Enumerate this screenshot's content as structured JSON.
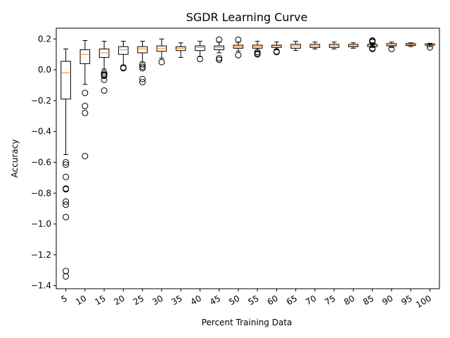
{
  "chart_data": {
    "type": "boxplot",
    "title": "SGDR Learning Curve",
    "xlabel": "Percent Training Data",
    "ylabel": "Accuracy",
    "ylim": [
      -1.42,
      0.27
    ],
    "yticks": [
      0.2,
      0.0,
      -0.2,
      -0.4,
      -0.6,
      -0.8,
      -1.0,
      -1.2,
      -1.4
    ],
    "ytick_labels": [
      "0.2",
      "0.0",
      "−0.2",
      "−0.4",
      "−0.6",
      "−0.8",
      "−1.0",
      "−1.2",
      "−1.4"
    ],
    "categories": [
      "5",
      "10",
      "15",
      "20",
      "25",
      "30",
      "35",
      "40",
      "45",
      "50",
      "55",
      "60",
      "65",
      "70",
      "75",
      "80",
      "85",
      "90",
      "95",
      "100"
    ],
    "boxes": [
      {
        "whislo": -0.55,
        "q1": -0.19,
        "med": -0.02,
        "q3": 0.055,
        "whishi": 0.135,
        "fliers": [
          -0.6,
          -0.615,
          -0.695,
          -0.77,
          -0.775,
          -0.855,
          -0.875,
          -0.955,
          -1.305,
          -1.34
        ]
      },
      {
        "whislo": -0.095,
        "q1": 0.04,
        "med": 0.1,
        "q3": 0.13,
        "whishi": 0.19,
        "fliers": [
          -0.15,
          -0.235,
          -0.28,
          -0.56
        ]
      },
      {
        "whislo": 0.005,
        "q1": 0.08,
        "med": 0.11,
        "q3": 0.135,
        "whishi": 0.185,
        "fliers": [
          -0.02,
          -0.03,
          -0.035,
          -0.04,
          -0.065,
          -0.135
        ]
      },
      {
        "whislo": 0.03,
        "q1": 0.1,
        "med": 0.13,
        "q3": 0.15,
        "whishi": 0.185,
        "fliers": [
          0.015,
          0.01
        ]
      },
      {
        "whislo": 0.05,
        "q1": 0.11,
        "med": 0.135,
        "q3": 0.15,
        "whishi": 0.185,
        "fliers": [
          0.035,
          0.02,
          0.01,
          -0.06,
          -0.08
        ]
      },
      {
        "whislo": 0.075,
        "q1": 0.12,
        "med": 0.14,
        "q3": 0.155,
        "whishi": 0.2,
        "fliers": [
          0.05
        ]
      },
      {
        "whislo": 0.08,
        "q1": 0.125,
        "med": 0.14,
        "q3": 0.15,
        "whishi": 0.175,
        "fliers": []
      },
      {
        "whislo": 0.085,
        "q1": 0.125,
        "med": 0.145,
        "q3": 0.155,
        "whishi": 0.185,
        "fliers": [
          0.07
        ]
      },
      {
        "whislo": 0.11,
        "q1": 0.13,
        "med": 0.145,
        "q3": 0.155,
        "whishi": 0.18,
        "fliers": [
          0.195,
          0.075,
          0.065
        ]
      },
      {
        "whislo": 0.12,
        "q1": 0.14,
        "med": 0.15,
        "q3": 0.16,
        "whishi": 0.18,
        "fliers": [
          0.195,
          0.095
        ]
      },
      {
        "whislo": 0.12,
        "q1": 0.14,
        "med": 0.15,
        "q3": 0.16,
        "whishi": 0.185,
        "fliers": [
          0.115,
          0.105,
          0.1
        ]
      },
      {
        "whislo": 0.13,
        "q1": 0.145,
        "med": 0.155,
        "q3": 0.16,
        "whishi": 0.18,
        "fliers": [
          0.12,
          0.115
        ]
      },
      {
        "whislo": 0.125,
        "q1": 0.14,
        "med": 0.155,
        "q3": 0.165,
        "whishi": 0.185,
        "fliers": []
      },
      {
        "whislo": 0.135,
        "q1": 0.145,
        "med": 0.155,
        "q3": 0.165,
        "whishi": 0.18,
        "fliers": []
      },
      {
        "whislo": 0.135,
        "q1": 0.145,
        "med": 0.155,
        "q3": 0.165,
        "whishi": 0.18,
        "fliers": []
      },
      {
        "whislo": 0.14,
        "q1": 0.15,
        "med": 0.155,
        "q3": 0.165,
        "whishi": 0.175,
        "fliers": []
      },
      {
        "whislo": 0.145,
        "q1": 0.15,
        "med": 0.16,
        "q3": 0.165,
        "whishi": 0.175,
        "fliers": [
          0.19,
          0.185,
          0.18,
          0.14,
          0.135
        ]
      },
      {
        "whislo": 0.145,
        "q1": 0.155,
        "med": 0.16,
        "q3": 0.17,
        "whishi": 0.18,
        "fliers": [
          0.135
        ]
      },
      {
        "whislo": 0.15,
        "q1": 0.158,
        "med": 0.163,
        "q3": 0.17,
        "whishi": 0.175,
        "fliers": []
      },
      {
        "whislo": 0.15,
        "q1": 0.16,
        "med": 0.163,
        "q3": 0.168,
        "whishi": 0.172,
        "fliers": [
          0.145
        ]
      }
    ],
    "colors": {
      "box": "#000000",
      "median": "#ff7f0e",
      "flier": "#000000"
    },
    "grid": false,
    "legend": "none"
  }
}
